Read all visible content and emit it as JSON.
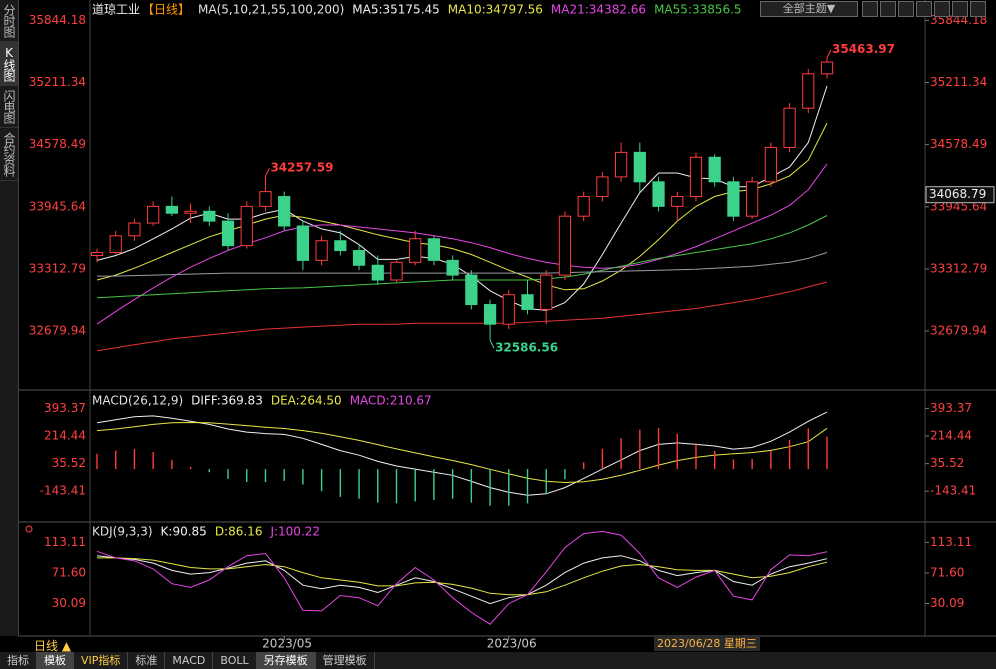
{
  "ui": {
    "sidebar": [
      "分时图",
      "K线图",
      "闪电图",
      "合约资料"
    ],
    "theme_button": "全部主题▼",
    "period_button": "日线 ▲",
    "cursor_date": "2023/06/28 星期三",
    "tabs": [
      "指标",
      "模板",
      "VIP指标",
      "标准",
      "MACD",
      "BOLL",
      "另存模板",
      "管理模板"
    ]
  },
  "chart_data": [
    {
      "type": "candlestick",
      "title": "道琼工业",
      "period": "【日线】",
      "indicator": "MA(5,10,21,55,100,200)",
      "categories": [
        null,
        null,
        null,
        null,
        null,
        null,
        null,
        null,
        null,
        null,
        "2023/05",
        null,
        null,
        null,
        null,
        null,
        null,
        null,
        null,
        null,
        null,
        null,
        "2023/06",
        null,
        null,
        null,
        null,
        null,
        null,
        null,
        null,
        null,
        null,
        null,
        null,
        null,
        null,
        null,
        null,
        null
      ],
      "up_color": "#ff3c3c",
      "down_color": "#3cd28c",
      "axis_color": "#ff4040",
      "ylim": [
        32100,
        35950
      ],
      "yticks": [
        32679.94,
        33312.79,
        33945.64,
        34578.49,
        35211.34,
        35844.18
      ],
      "candles": {
        "open": [
          33450,
          33480,
          33650,
          33780,
          33950,
          33880,
          33900,
          33800,
          33550,
          33950,
          34050,
          33750,
          33400,
          33600,
          33500,
          33350,
          33200,
          33380,
          33620,
          33400,
          33250,
          32950,
          32750,
          33050,
          32900,
          33250,
          33850,
          34050,
          34250,
          34500,
          34200,
          33950,
          34050,
          34450,
          34200,
          33850,
          34200,
          34550,
          34950,
          35300
        ],
        "high": [
          33520,
          33700,
          33820,
          34000,
          34050,
          33980,
          33950,
          33880,
          34000,
          34257.59,
          34100,
          33800,
          33650,
          33700,
          33550,
          33450,
          33400,
          33700,
          33650,
          33450,
          33300,
          33000,
          33100,
          33200,
          33300,
          33900,
          34100,
          34300,
          34600,
          34600,
          34250,
          34100,
          34500,
          34480,
          34250,
          34250,
          34600,
          35000,
          35350,
          35463.97
        ],
        "low": [
          33380,
          33460,
          33600,
          33750,
          33850,
          33780,
          33750,
          33500,
          33520,
          33900,
          33700,
          33300,
          33350,
          33450,
          33300,
          33150,
          33180,
          33350,
          33350,
          33200,
          32900,
          32586.56,
          32700,
          32850,
          32750,
          33200,
          33800,
          34000,
          34200,
          34100,
          33900,
          33800,
          34000,
          34150,
          33800,
          33820,
          34150,
          34500,
          34900,
          35250
        ],
        "close": [
          33480,
          33650,
          33780,
          33950,
          33880,
          33900,
          33800,
          33550,
          33950,
          34100,
          33750,
          33400,
          33600,
          33500,
          33350,
          33200,
          33380,
          33620,
          33400,
          33250,
          32950,
          32750,
          33050,
          32900,
          33250,
          33850,
          34050,
          34250,
          34500,
          34200,
          33950,
          34050,
          34450,
          34200,
          33850,
          34200,
          34550,
          34950,
          35300,
          35420
        ]
      },
      "series": [
        {
          "name": "MA5:35175.45",
          "color": "#f0f0f0",
          "values": [
            33400,
            33450,
            33520,
            33620,
            33720,
            33830,
            33880,
            33820,
            33820,
            33880,
            33920,
            33800,
            33720,
            33680,
            33560,
            33410,
            33410,
            33440,
            33420,
            33360,
            33240,
            33090,
            32990,
            32910,
            32890,
            32970,
            33160,
            33460,
            33780,
            34090,
            34290,
            34290,
            34240,
            34230,
            34150,
            34150,
            34250,
            34350,
            34600,
            35175.45
          ]
        },
        {
          "name": "MA10:34797.56",
          "color": "#e6e646",
          "values": [
            33200,
            33250,
            33320,
            33400,
            33480,
            33560,
            33640,
            33700,
            33760,
            33820,
            33860,
            33840,
            33800,
            33760,
            33710,
            33660,
            33620,
            33580,
            33560,
            33520,
            33460,
            33380,
            33300,
            33230,
            33150,
            33100,
            33110,
            33190,
            33300,
            33440,
            33610,
            33800,
            33950,
            34050,
            34100,
            34120,
            34180,
            34260,
            34420,
            34797.56
          ]
        },
        {
          "name": "MA21:34382.66",
          "color": "#e646e6",
          "values": [
            32750,
            32880,
            33000,
            33120,
            33230,
            33330,
            33420,
            33500,
            33570,
            33630,
            33700,
            33740,
            33760,
            33760,
            33740,
            33720,
            33700,
            33680,
            33650,
            33620,
            33580,
            33530,
            33470,
            33420,
            33380,
            33350,
            33330,
            33320,
            33330,
            33360,
            33410,
            33470,
            33540,
            33620,
            33700,
            33780,
            33860,
            33960,
            34120,
            34382.66
          ]
        },
        {
          "name": "MA55:33856.5",
          "color": "#46c846",
          "values": [
            33020,
            33030,
            33040,
            33050,
            33060,
            33070,
            33080,
            33090,
            33100,
            33110,
            33115,
            33120,
            33130,
            33140,
            33150,
            33160,
            33170,
            33180,
            33190,
            33200,
            33200,
            33200,
            33200,
            33200,
            33210,
            33230,
            33260,
            33300,
            33340,
            33380,
            33420,
            33450,
            33480,
            33510,
            33540,
            33570,
            33620,
            33680,
            33760,
            33856.5
          ]
        },
        {
          "color": "#9a9aa8",
          "values": [
            33240,
            33240,
            33245,
            33250,
            33255,
            33260,
            33265,
            33270,
            33270,
            33270,
            33270,
            33270,
            33270,
            33270,
            33270,
            33270,
            33270,
            33270,
            33270,
            33270,
            33270,
            33270,
            33270,
            33270,
            33270,
            33275,
            33280,
            33285,
            33290,
            33295,
            33300,
            33305,
            33310,
            33320,
            33330,
            33340,
            33360,
            33380,
            33420,
            33480
          ]
        },
        {
          "color": "#e63232",
          "values": [
            32480,
            32510,
            32540,
            32570,
            32600,
            32620,
            32640,
            32660,
            32680,
            32700,
            32710,
            32720,
            32730,
            32740,
            32750,
            32750,
            32750,
            32760,
            32760,
            32760,
            32760,
            32760,
            32760,
            32770,
            32780,
            32790,
            32800,
            32810,
            32830,
            32850,
            32870,
            32890,
            32910,
            32940,
            32970,
            33000,
            33040,
            33080,
            33130,
            33180
          ]
        }
      ],
      "annotations": [
        {
          "label": "34257.59",
          "value": 34257.59,
          "field": "high",
          "color": "#ff3c3c"
        },
        {
          "label": "32586.56",
          "value": 32586.56,
          "field": "low",
          "color": "#3cd28c"
        },
        {
          "label": "35463.97",
          "value": 35463.97,
          "field": "high",
          "color": "#ff3c3c"
        }
      ],
      "price_marker": {
        "value": 34068.79,
        "label": "34068.79"
      }
    },
    {
      "type": "macd",
      "indicator": "MACD(26,12,9)",
      "axis_color": "#ff4040",
      "up_color": "#ff3c3c",
      "down_color": "#3cd28c",
      "ylim": [
        -330,
        500
      ],
      "yticks": [
        -143.41,
        35.52,
        214.44,
        393.37
      ],
      "series": [
        {
          "name": "DIFF:369.83",
          "color": "#f0f0f0",
          "values": [
            300,
            320,
            340,
            345,
            330,
            310,
            290,
            260,
            240,
            230,
            225,
            200,
            160,
            120,
            90,
            50,
            20,
            0,
            -20,
            -40,
            -80,
            -120,
            -150,
            -170,
            -160,
            -120,
            -60,
            0,
            60,
            120,
            160,
            170,
            160,
            150,
            130,
            140,
            180,
            240,
            310,
            369.83
          ]
        },
        {
          "name": "DEA:264.50",
          "color": "#e6e646",
          "values": [
            250,
            260,
            275,
            290,
            300,
            302,
            300,
            292,
            282,
            272,
            263,
            250,
            232,
            210,
            186,
            159,
            131,
            105,
            80,
            56,
            29,
            -1,
            -31,
            -59,
            -79,
            -87,
            -82,
            -66,
            -40,
            -8,
            26,
            55,
            76,
            91,
            99,
            107,
            121,
            145,
            178,
            264.5
          ]
        },
        {
          "name": "MACD:210.67",
          "color": "#e646e6",
          "bars": true,
          "values": [
            100,
            120,
            130,
            110,
            60,
            16,
            -20,
            -64,
            -84,
            -84,
            -76,
            -100,
            -144,
            -180,
            -192,
            -218,
            -222,
            -210,
            -200,
            -192,
            -218,
            -238,
            -238,
            -222,
            -162,
            -66,
            44,
            132,
            200,
            256,
            268,
            230,
            168,
            118,
            62,
            66,
            118,
            190,
            264,
            210.67
          ]
        }
      ]
    },
    {
      "type": "line",
      "indicator": "KDJ(9,3,3)",
      "axis_color": "#ff4040",
      "ylim": [
        -14,
        138
      ],
      "yticks": [
        {
          "value": 30.09,
          "label": "30.09"
        },
        {
          "value": 71.6,
          "label": "71.60"
        },
        {
          "value": 113.11,
          "label": "113.11"
        }
      ],
      "series": [
        {
          "name": "K:90.85",
          "color": "#f0f0f0",
          "values": [
            95,
            92,
            90,
            85,
            75,
            70,
            72,
            78,
            85,
            88,
            75,
            55,
            50,
            55,
            52,
            45,
            55,
            65,
            60,
            50,
            40,
            30,
            38,
            42,
            55,
            72,
            85,
            92,
            95,
            88,
            75,
            68,
            72,
            75,
            60,
            55,
            70,
            80,
            85,
            90.85
          ]
        },
        {
          "name": "D:86.16",
          "color": "#e6e646",
          "values": [
            92,
            92,
            91,
            89,
            84,
            79,
            77,
            77,
            80,
            83,
            80,
            72,
            65,
            62,
            59,
            54,
            54,
            58,
            59,
            56,
            51,
            44,
            42,
            42,
            46,
            55,
            65,
            74,
            81,
            83,
            80,
            76,
            75,
            75,
            70,
            65,
            67,
            72,
            80,
            86.16
          ]
        },
        {
          "name": "J:100.22",
          "color": "#e646e6",
          "values": [
            101,
            92,
            88,
            77,
            57,
            52,
            62,
            80,
            95,
            98,
            65,
            21,
            20,
            41,
            38,
            27,
            57,
            79,
            62,
            38,
            18,
            2,
            30,
            42,
            73,
            106,
            125,
            128,
            123,
            98,
            65,
            52,
            66,
            75,
            40,
            35,
            76,
            96,
            95,
            100.22
          ]
        }
      ]
    }
  ]
}
